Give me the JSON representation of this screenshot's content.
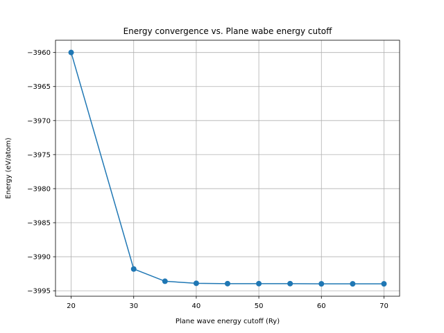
{
  "chart_data": {
    "type": "line",
    "title": "Energy convergence vs. Plane wabe energy cutoff",
    "xlabel": "Plane wave energy cutoff (Ry)",
    "ylabel": "Energy (eV/atom)",
    "x": [
      20,
      30,
      35,
      40,
      45,
      50,
      55,
      60,
      65,
      70
    ],
    "series": [
      {
        "values": [
          -3960.0,
          -3991.8,
          -3993.6,
          -3993.9,
          -3993.95,
          -3993.95,
          -3993.95,
          -3993.98,
          -3993.98,
          -3993.98
        ]
      }
    ],
    "xlim": [
      17.5,
      72.5
    ],
    "ylim": [
      -3995.8,
      -3958.2
    ],
    "xticks": [
      20,
      30,
      40,
      50,
      60,
      70
    ],
    "yticks": [
      -3960,
      -3965,
      -3970,
      -3975,
      -3980,
      -3985,
      -3990,
      -3995
    ],
    "xtick_labels": [
      "20",
      "30",
      "40",
      "50",
      "60",
      "70"
    ],
    "ytick_labels": [
      "−3960",
      "−3965",
      "−3970",
      "−3975",
      "−3980",
      "−3985",
      "−3990",
      "−3995"
    ],
    "grid": true,
    "line_color": "#1f77b4",
    "marker": "circle"
  }
}
